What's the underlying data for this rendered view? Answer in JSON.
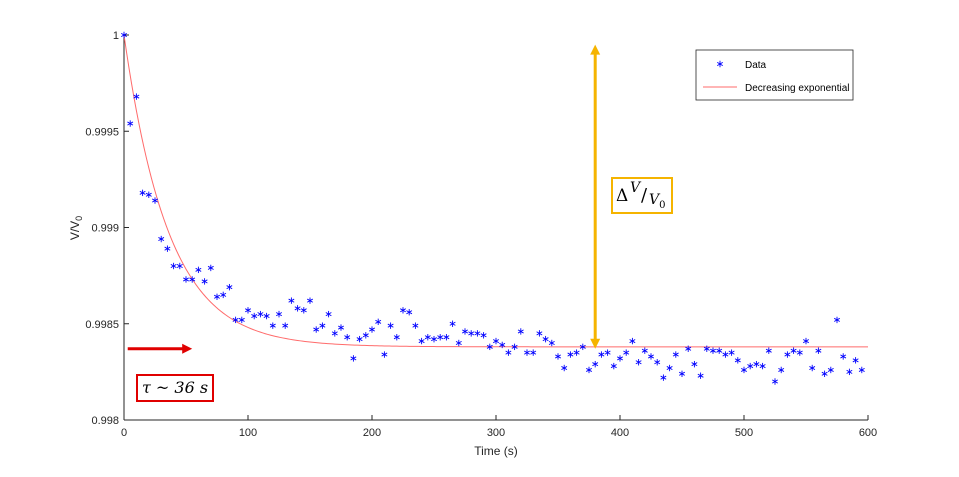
{
  "chart_data": {
    "type": "scatter",
    "xlabel": "Time (s)",
    "ylabel": "V/V",
    "ylabel_sub": "0",
    "xlim": [
      0,
      600
    ],
    "ylim": [
      0.998,
      1.0
    ],
    "xticks": [
      0,
      100,
      200,
      300,
      400,
      500,
      600
    ],
    "yticks": [
      {
        "value": 0.998,
        "label": "0.998"
      },
      {
        "value": 0.9985,
        "label": "0.9985"
      },
      {
        "value": 0.999,
        "label": "0.999"
      },
      {
        "value": 0.9995,
        "label": "0.9995"
      },
      {
        "value": 1.0,
        "label": "1"
      }
    ],
    "grid": false,
    "legend_position": "top-right",
    "series": [
      {
        "name": "Data",
        "type": "scatter",
        "marker": "asterisk",
        "color": "#0000ff",
        "points": [
          [
            0,
            1.0
          ],
          [
            5,
            0.99954
          ],
          [
            10,
            0.99968
          ],
          [
            15,
            0.99918
          ],
          [
            20,
            0.99917
          ],
          [
            25,
            0.99914
          ],
          [
            30,
            0.99894
          ],
          [
            35,
            0.99889
          ],
          [
            40,
            0.9988
          ],
          [
            45,
            0.9988
          ],
          [
            50,
            0.99873
          ],
          [
            55,
            0.99873
          ],
          [
            60,
            0.99878
          ],
          [
            65,
            0.99872
          ],
          [
            70,
            0.99879
          ],
          [
            75,
            0.99864
          ],
          [
            80,
            0.99865
          ],
          [
            85,
            0.99869
          ],
          [
            90,
            0.99852
          ],
          [
            95,
            0.99852
          ],
          [
            100,
            0.99857
          ],
          [
            105,
            0.99854
          ],
          [
            110,
            0.99855
          ],
          [
            115,
            0.99854
          ],
          [
            120,
            0.99849
          ],
          [
            125,
            0.99855
          ],
          [
            130,
            0.99849
          ],
          [
            135,
            0.99862
          ],
          [
            140,
            0.99858
          ],
          [
            145,
            0.99857
          ],
          [
            150,
            0.99862
          ],
          [
            155,
            0.99847
          ],
          [
            160,
            0.99849
          ],
          [
            165,
            0.99855
          ],
          [
            170,
            0.99845
          ],
          [
            175,
            0.99848
          ],
          [
            180,
            0.99843
          ],
          [
            185,
            0.99832
          ],
          [
            190,
            0.99842
          ],
          [
            195,
            0.99844
          ],
          [
            200,
            0.99847
          ],
          [
            205,
            0.99851
          ],
          [
            210,
            0.99834
          ],
          [
            215,
            0.99849
          ],
          [
            220,
            0.99843
          ],
          [
            225,
            0.99857
          ],
          [
            230,
            0.99856
          ],
          [
            235,
            0.99849
          ],
          [
            240,
            0.99841
          ],
          [
            245,
            0.99843
          ],
          [
            250,
            0.99842
          ],
          [
            255,
            0.99843
          ],
          [
            260,
            0.99843
          ],
          [
            265,
            0.9985
          ],
          [
            270,
            0.9984
          ],
          [
            275,
            0.99846
          ],
          [
            280,
            0.99845
          ],
          [
            285,
            0.99845
          ],
          [
            290,
            0.99844
          ],
          [
            295,
            0.99838
          ],
          [
            300,
            0.99841
          ],
          [
            305,
            0.99839
          ],
          [
            310,
            0.99835
          ],
          [
            315,
            0.99838
          ],
          [
            320,
            0.99846
          ],
          [
            325,
            0.99835
          ],
          [
            330,
            0.99835
          ],
          [
            335,
            0.99845
          ],
          [
            340,
            0.99842
          ],
          [
            345,
            0.9984
          ],
          [
            350,
            0.99833
          ],
          [
            355,
            0.99827
          ],
          [
            360,
            0.99834
          ],
          [
            365,
            0.99835
          ],
          [
            370,
            0.99838
          ],
          [
            375,
            0.99826
          ],
          [
            380,
            0.99829
          ],
          [
            385,
            0.99834
          ],
          [
            390,
            0.99835
          ],
          [
            395,
            0.99828
          ],
          [
            400,
            0.99832
          ],
          [
            405,
            0.99835
          ],
          [
            410,
            0.99841
          ],
          [
            415,
            0.9983
          ],
          [
            420,
            0.99836
          ],
          [
            425,
            0.99833
          ],
          [
            430,
            0.9983
          ],
          [
            435,
            0.99822
          ],
          [
            440,
            0.99827
          ],
          [
            445,
            0.99834
          ],
          [
            450,
            0.99824
          ],
          [
            455,
            0.99837
          ],
          [
            460,
            0.99829
          ],
          [
            465,
            0.99823
          ],
          [
            470,
            0.99837
          ],
          [
            475,
            0.99836
          ],
          [
            480,
            0.99836
          ],
          [
            485,
            0.99834
          ],
          [
            490,
            0.99835
          ],
          [
            495,
            0.99831
          ],
          [
            500,
            0.99826
          ],
          [
            505,
            0.99828
          ],
          [
            510,
            0.99829
          ],
          [
            515,
            0.99828
          ],
          [
            520,
            0.99836
          ],
          [
            525,
            0.9982
          ],
          [
            530,
            0.99826
          ],
          [
            535,
            0.99834
          ],
          [
            540,
            0.99836
          ],
          [
            545,
            0.99835
          ],
          [
            550,
            0.99841
          ],
          [
            555,
            0.99827
          ],
          [
            560,
            0.99836
          ],
          [
            565,
            0.99824
          ],
          [
            570,
            0.99826
          ],
          [
            575,
            0.99852
          ],
          [
            580,
            0.99833
          ],
          [
            585,
            0.99825
          ],
          [
            590,
            0.99831
          ],
          [
            595,
            0.99826
          ]
        ]
      },
      {
        "name": "Decreasing exponential",
        "type": "line",
        "color": "#ff6b6b",
        "model": {
          "form": "exponential-decay",
          "start": 1.0,
          "asymptote": 0.99838,
          "tau": 36
        }
      }
    ],
    "annotations": [
      {
        "kind": "double-arrow",
        "color": "#f5b400",
        "x": 380,
        "y_from": 0.99837,
        "y_to": 0.99995
      },
      {
        "kind": "arrow",
        "color": "#e00000",
        "x_from": 3,
        "x_to": 55,
        "y": 0.99837
      },
      {
        "kind": "text-box",
        "label": "delta-v-over-v0",
        "symbol": "Δ",
        "numerator": "V",
        "denominator": "V",
        "denominator_sub": "0",
        "border_color": "#f5b400"
      },
      {
        "kind": "text-box",
        "label": "tau-value",
        "text": "τ ~ 36 s",
        "border_color": "#e00000"
      }
    ]
  }
}
